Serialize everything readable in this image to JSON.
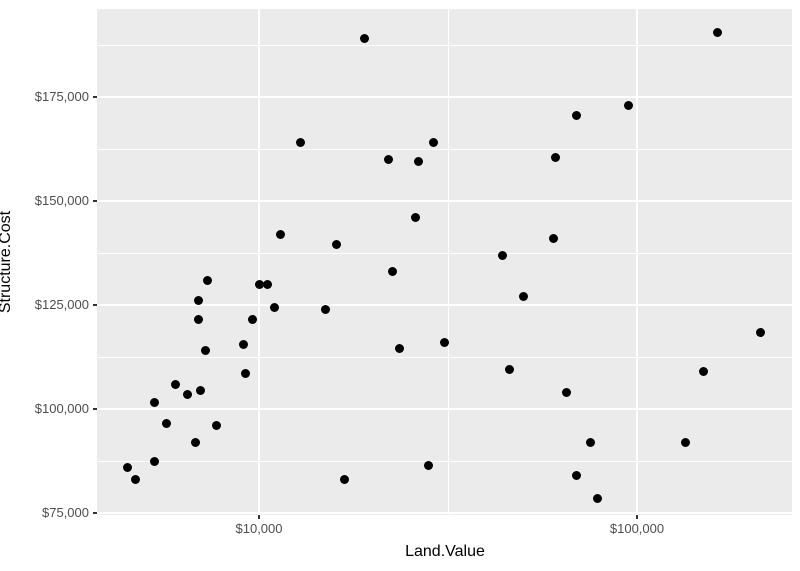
{
  "chart_data": {
    "type": "scatter",
    "title": "",
    "xlabel": "Land.Value",
    "ylabel": "Structure.Cost",
    "x_scale": "log10",
    "y_scale": "linear",
    "x_range": [
      3700,
      257000
    ],
    "y_range": [
      74500,
      196200
    ],
    "grid": true,
    "legend": "none",
    "panel_bg": "#EBEBEB",
    "grid_color": "#FFFFFF",
    "point_color": "#000000",
    "axis_text_color": "#4D4D4D",
    "x_ticks": [
      {
        "value": 10000,
        "label": "$10,000"
      },
      {
        "value": 100000,
        "label": "$100,000"
      }
    ],
    "y_ticks": [
      {
        "value": 75000,
        "label": "$75,000"
      },
      {
        "value": 100000,
        "label": "$100,000"
      },
      {
        "value": 125000,
        "label": "$125,000"
      },
      {
        "value": 150000,
        "label": "$150,000"
      },
      {
        "value": 175000,
        "label": "$175,000"
      }
    ],
    "x_minor_breaks": [
      31623
    ],
    "y_minor_breaks": [
      87500,
      112500,
      137500,
      162500,
      187500
    ],
    "points": [
      [
        19000,
        189000
      ],
      [
        163000,
        190500
      ],
      [
        95000,
        173000
      ],
      [
        69000,
        170500
      ],
      [
        12900,
        164000
      ],
      [
        29000,
        164000
      ],
      [
        22000,
        160000
      ],
      [
        26500,
        159500
      ],
      [
        61000,
        160500
      ],
      [
        26000,
        146000
      ],
      [
        11400,
        142000
      ],
      [
        16000,
        139500
      ],
      [
        60000,
        141000
      ],
      [
        44000,
        137000
      ],
      [
        22500,
        133000
      ],
      [
        7300,
        131000
      ],
      [
        10000,
        130000
      ],
      [
        10500,
        130000
      ],
      [
        6900,
        126000
      ],
      [
        11000,
        124500
      ],
      [
        15000,
        124000
      ],
      [
        6900,
        121500
      ],
      [
        9600,
        121500
      ],
      [
        50000,
        127000
      ],
      [
        212000,
        118500
      ],
      [
        31000,
        116000
      ],
      [
        9100,
        115500
      ],
      [
        23500,
        114500
      ],
      [
        7200,
        114000
      ],
      [
        46000,
        109500
      ],
      [
        150000,
        109000
      ],
      [
        9200,
        108500
      ],
      [
        6000,
        106000
      ],
      [
        7000,
        104500
      ],
      [
        6450,
        103500
      ],
      [
        65000,
        104000
      ],
      [
        5300,
        101500
      ],
      [
        5700,
        96500
      ],
      [
        7700,
        96000
      ],
      [
        75500,
        92000
      ],
      [
        134000,
        92000
      ],
      [
        6800,
        92000
      ],
      [
        5300,
        87500
      ],
      [
        28000,
        86500
      ],
      [
        4500,
        86000
      ],
      [
        4700,
        83000
      ],
      [
        16800,
        83000
      ],
      [
        69000,
        84000
      ],
      [
        78500,
        78500
      ]
    ]
  }
}
